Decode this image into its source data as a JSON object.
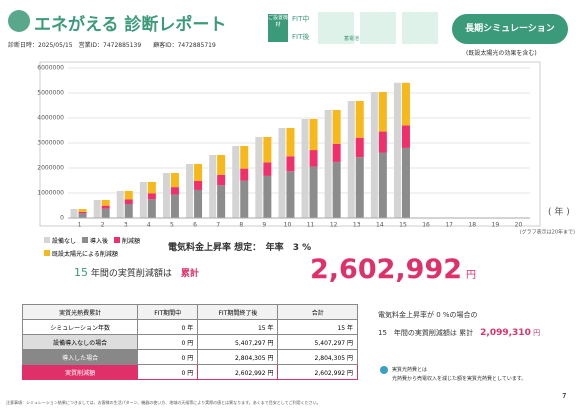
{
  "header": {
    "logo": "エネがえる 診断レポート",
    "date_label": "診断日時：",
    "date": "2025/05/15",
    "sales_id_label": "営業ID：",
    "sales_id": "7472885139",
    "customer_id_label": "顧客ID：",
    "customer_id": "7472885719",
    "equipment_label": "ご設置機材",
    "fit_during": "FIT中",
    "fit_after": "FIT後",
    "battery": "蓄電池",
    "button": "長期シミュレーション",
    "button_note": "(既設太陽光の効果を含む)"
  },
  "chart_data": {
    "type": "bar",
    "categories": [
      "1",
      "2",
      "3",
      "4",
      "5",
      "6",
      "7",
      "8",
      "9",
      "10",
      "11",
      "12",
      "13",
      "14",
      "15",
      "16",
      "17",
      "18",
      "19",
      "20"
    ],
    "x_label": "( 年 )",
    "note": "(グラフ表示は20年まで)",
    "ylim": [
      0,
      6000000
    ],
    "yticks": [
      0,
      1000000,
      2000000,
      3000000,
      4000000,
      5000000,
      6000000
    ],
    "grid": true,
    "series": [
      {
        "name": "設備なし",
        "color": "#d4d4d4",
        "values": [
          360000,
          720000,
          1080000,
          1440000,
          1800000,
          2160000,
          2520000,
          2880000,
          3240000,
          3600000,
          3960000,
          4320000,
          4680000,
          5040000,
          5407297,
          null,
          null,
          null,
          null,
          null
        ]
      },
      {
        "name": "導入後",
        "color": "#8c8c8c",
        "values": [
          187000,
          374000,
          561000,
          748000,
          935000,
          1122000,
          1309000,
          1496000,
          1683000,
          1870000,
          2057000,
          2244000,
          2431000,
          2618000,
          2804305,
          null,
          null,
          null,
          null,
          null
        ]
      },
      {
        "name": "削減額",
        "color": "#f0306a",
        "values": [
          60000,
          120000,
          180000,
          240000,
          300000,
          360000,
          420000,
          480000,
          540000,
          600000,
          660000,
          720000,
          780000,
          840000,
          900000,
          null,
          null,
          null,
          null,
          null
        ]
      },
      {
        "name": "既設太陽光による削減額",
        "color": "#f7b81c",
        "values": [
          113000,
          226000,
          339000,
          452000,
          565000,
          678000,
          791000,
          904000,
          1017000,
          1130000,
          1243000,
          1356000,
          1469000,
          1582000,
          1702992,
          null,
          null,
          null,
          null,
          null
        ]
      }
    ]
  },
  "summary": {
    "rate_label": "電気料金上昇率 想定：",
    "rate_prefix": "年率",
    "rate": "3",
    "rate_unit": "%",
    "years": "15",
    "years_text": "年間の実質削減額は",
    "total_label": "累計",
    "total": "2,602,992",
    "yen": "円"
  },
  "table": {
    "header": [
      "実質光熱費累計",
      "FIT期間中",
      "FIT期間終了後",
      "合計"
    ],
    "rows": [
      [
        "シミュレーション年数",
        "0 年",
        "15 年",
        "15 年"
      ],
      [
        "設備導入なしの場合",
        "0 円",
        "5,407,297 円",
        "5,407,297 円"
      ],
      [
        "導入した場合",
        "0 円",
        "2,804,305 円",
        "2,804,305 円"
      ],
      [
        "実質削減額",
        "0 円",
        "2,602,992 円",
        "2,602,992 円"
      ]
    ]
  },
  "alt": {
    "line1": "電気料金上昇率が 0 %の場合の",
    "years": "15",
    "line2": "年間の実質削減額は 累計",
    "total": "2,099,310",
    "yen": "円"
  },
  "note": {
    "title": "実質光熱費とは",
    "text": "光熱費から売電収入を減じた額を実質光熱費としています。"
  },
  "footer": {
    "text": "注意事項：シミュレーション結果につきましては、お客様の生活パターン、機器の使い方、地域の天候等により実際の値とは異なります。あくまで目安としてご利用ください。",
    "page": "7"
  }
}
